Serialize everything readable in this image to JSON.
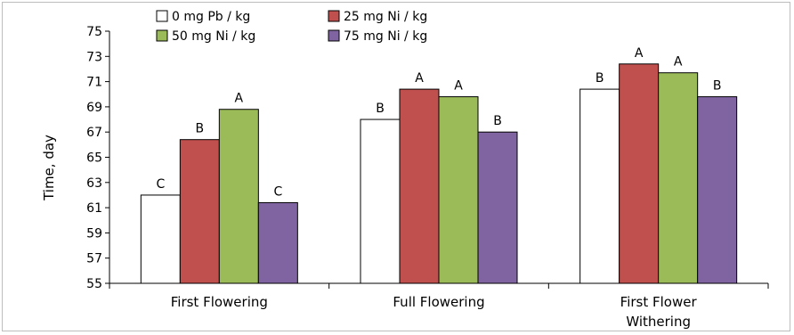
{
  "chart_data": {
    "type": "bar",
    "title": "",
    "xlabel": "",
    "ylabel": "Time, day",
    "ylim": [
      55,
      75
    ],
    "yticks": [
      55,
      57,
      59,
      61,
      63,
      65,
      67,
      69,
      71,
      73,
      75
    ],
    "categories": [
      [
        "First Flowering"
      ],
      [
        "Full Flowering"
      ],
      [
        "First Flower",
        "Withering"
      ]
    ],
    "series": [
      {
        "name": "0 mg Pb / kg",
        "color": "#ffffff",
        "values": [
          62.0,
          68.0,
          70.4
        ],
        "letters": [
          "C",
          "B",
          "B"
        ]
      },
      {
        "name": "25 mg Ni / kg",
        "color": "#c0504d",
        "values": [
          66.4,
          70.4,
          72.4
        ],
        "letters": [
          "B",
          "A",
          "A"
        ]
      },
      {
        "name": "50 mg Ni / kg",
        "color": "#9bbb59",
        "values": [
          68.8,
          69.8,
          71.7
        ],
        "letters": [
          "A",
          "A",
          "A"
        ]
      },
      {
        "name": "75 mg Ni / kg",
        "color": "#8064a2",
        "values": [
          61.4,
          67.0,
          69.8
        ],
        "letters": [
          "C",
          "B",
          "B"
        ]
      }
    ],
    "legend_position": "top-left",
    "grid": false
  }
}
